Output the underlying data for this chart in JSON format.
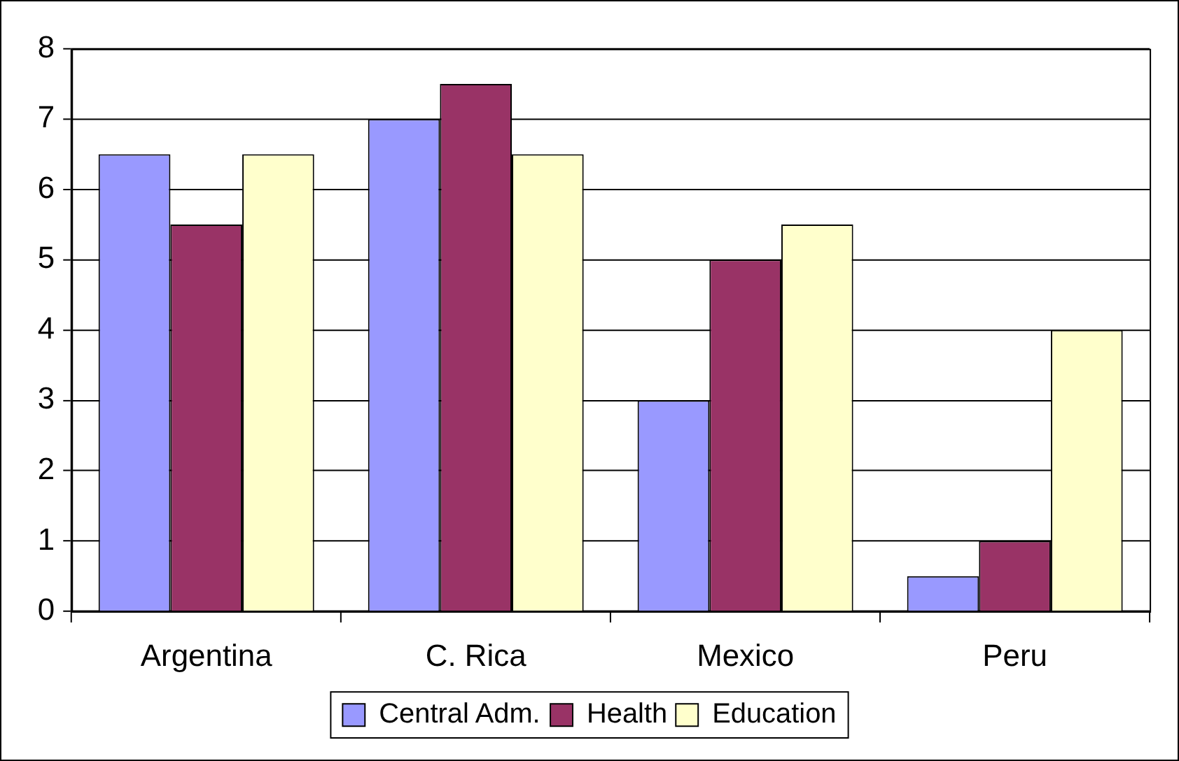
{
  "chart_data": {
    "type": "bar",
    "categories": [
      "Argentina",
      "C. Rica",
      "Mexico",
      "Peru"
    ],
    "series": [
      {
        "name": "Central Adm.",
        "color": "#9999ff",
        "values": [
          6.5,
          7,
          3,
          0.5
        ]
      },
      {
        "name": "Health",
        "color": "#993366",
        "values": [
          5.5,
          7.5,
          5,
          1
        ]
      },
      {
        "name": "Education",
        "color": "#ffffcc",
        "values": [
          6.5,
          6.5,
          5.5,
          4
        ]
      }
    ],
    "ylim": [
      0,
      8
    ],
    "yticks": [
      0,
      1,
      2,
      3,
      4,
      5,
      6,
      7,
      8
    ],
    "grid": "y",
    "legend": "bottom"
  }
}
